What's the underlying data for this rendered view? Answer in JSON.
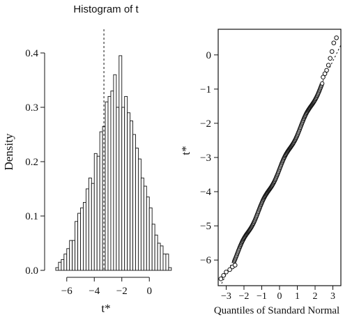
{
  "chart_data": [
    {
      "type": "bar",
      "title": "Histogram of t",
      "xlabel": "t*",
      "ylabel": "Density",
      "xlim": [
        -6.9,
        0.9
      ],
      "ylim": [
        0,
        0.4
      ],
      "xticks": [
        "-6",
        "-4",
        "-2",
        "0"
      ],
      "yticks": [
        "0.0",
        "0.1",
        "0.2",
        "0.3",
        "0.4"
      ],
      "bin_width": 0.2,
      "bin_start": -6.8,
      "densities": [
        0.005,
        0.015,
        0.02,
        0.03,
        0.04,
        0.055,
        0.055,
        0.09,
        0.105,
        0.115,
        0.125,
        0.15,
        0.17,
        0.16,
        0.215,
        0.21,
        0.255,
        0.265,
        0.31,
        0.32,
        0.33,
        0.36,
        0.3,
        0.395,
        0.3,
        0.32,
        0.29,
        0.275,
        0.25,
        0.225,
        0.205,
        0.17,
        0.155,
        0.135,
        0.115,
        0.085,
        0.065,
        0.05,
        0.045,
        0.03,
        0.03,
        0.005
      ],
      "reference_line_x": -3.3,
      "grid": false
    },
    {
      "type": "scatter",
      "xlabel": "Quantiles of Standard Normal",
      "ylabel": "t*",
      "xlim": [
        -3.45,
        3.45
      ],
      "ylim": [
        -6.75,
        0.75
      ],
      "xticks": [
        "-3",
        "-2",
        "-1",
        "0",
        "1",
        "2",
        "3"
      ],
      "yticks": [
        "0",
        "-1",
        "-2",
        "-3",
        "-4",
        "-5",
        "-6"
      ],
      "reference_line": {
        "intercept": -3.3,
        "slope": 1.04
      },
      "points": [
        [
          -3.3,
          -6.55
        ],
        [
          -3.15,
          -6.45
        ],
        [
          -3.0,
          -6.35
        ],
        [
          -2.8,
          -6.28
        ],
        [
          -2.65,
          -6.2
        ],
        [
          -2.5,
          -6.15
        ],
        [
          2.45,
          -0.65
        ],
        [
          2.55,
          -0.55
        ],
        [
          2.65,
          -0.45
        ],
        [
          2.75,
          -0.3
        ],
        [
          2.85,
          -0.1
        ],
        [
          2.95,
          0.1
        ],
        [
          3.05,
          0.35
        ],
        [
          3.2,
          0.5
        ]
      ],
      "grid": false
    }
  ]
}
